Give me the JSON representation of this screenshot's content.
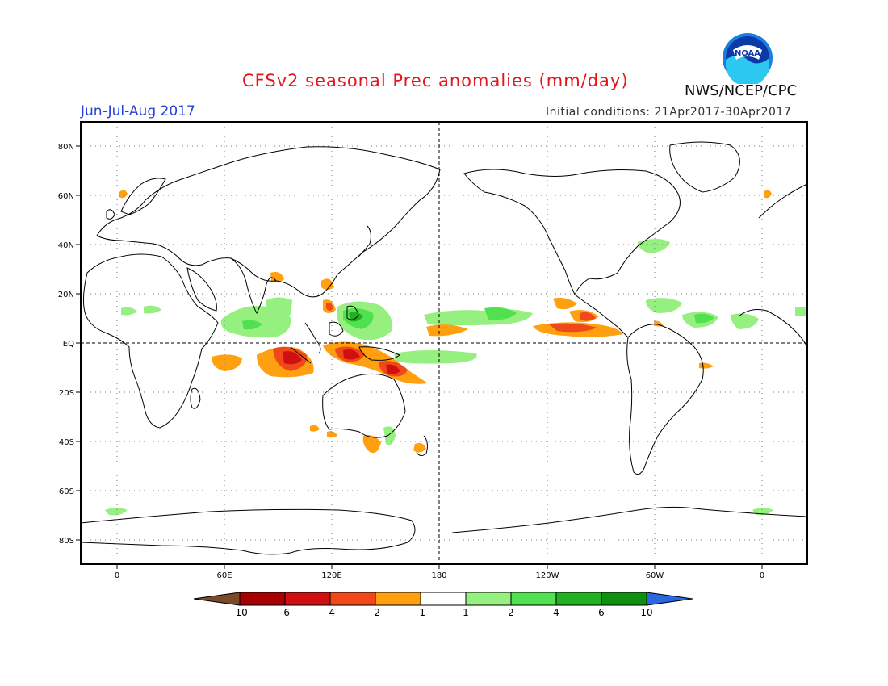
{
  "header": {
    "title": "CFSv2 seasonal Prec anomalies (mm/day)",
    "season": "Jun-Jul-Aug 2017",
    "initial_conditions": "Initial conditions: 21Apr2017-30Apr2017",
    "agency": "NWS/NCEP/CPC",
    "logo_text": "NOAA"
  },
  "axes": {
    "lat_labels": [
      "80N",
      "60N",
      "40N",
      "20N",
      "EQ",
      "20S",
      "40S",
      "60S",
      "80S"
    ],
    "lon_labels": [
      "0",
      "60E",
      "120E",
      "180",
      "120W",
      "60W",
      "0"
    ]
  },
  "colorbar": {
    "labels": [
      "-10",
      "-6",
      "-4",
      "-2",
      "-1",
      "1",
      "2",
      "4",
      "6",
      "10"
    ],
    "colors": [
      "#7a4a2a",
      "#a80000",
      "#d01010",
      "#f04818",
      "#ffa010",
      "#ffffff",
      "#96f080",
      "#50e050",
      "#20b020",
      "#109010",
      "#2868e0"
    ]
  },
  "map_features": {
    "grid": "dotted",
    "equator": "dashed",
    "dateline": "dashed",
    "land_outline_color": "#000000"
  }
}
